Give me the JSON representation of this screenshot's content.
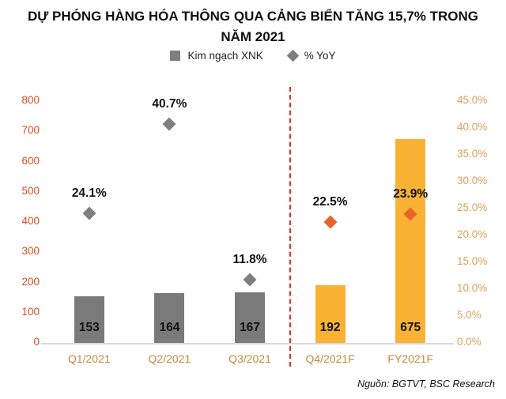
{
  "title_lines": [
    "DỰ PHÓNG HÀNG HÓA THÔNG QUA CẢNG BIỂN TĂNG 15,7% TRONG",
    "NĂM 2021"
  ],
  "legend": {
    "items": [
      {
        "label": "Kim ngạch XNK",
        "marker": "square",
        "color": "#7f7f7f"
      },
      {
        "label": "% YoY",
        "marker": "diamond",
        "color": "#7f7f7f"
      }
    ]
  },
  "source": "Nguồn: BGTVT, BSC Research",
  "colors": {
    "actual_bar": "#7a7a7a",
    "forecast_bar": "#f9b234",
    "actual_marker": "#7f7f7f",
    "forecast_marker": "#e8632c",
    "separator": "#e0301e",
    "left_axis_text": "#d94e1f",
    "right_axis_text": "#d9a15c",
    "category_text": "#c9873c",
    "data_label": "#111111",
    "baseline": "#d9d9d9"
  },
  "chart_data": {
    "type": "bar",
    "title": "DỰ PHÓNG HÀNG HÓA THÔNG QUA CẢNG BIỂN TĂNG 15,7% TRONG NĂM 2021",
    "categories": [
      "Q1/2021",
      "Q2/2021",
      "Q3/2021",
      "Q4/2021F",
      "FY2021F"
    ],
    "series": [
      {
        "name": "Kim ngạch XNK",
        "type": "bar",
        "axis": "left",
        "values": [
          153,
          164,
          167,
          192,
          675
        ],
        "value_labels": [
          "153",
          "164",
          "167",
          "192",
          "675"
        ],
        "forecast_flags": [
          false,
          false,
          false,
          true,
          true
        ]
      },
      {
        "name": "% YoY",
        "type": "scatter",
        "marker": "diamond",
        "axis": "right",
        "values": [
          24.1,
          40.7,
          11.8,
          22.5,
          23.9
        ],
        "value_labels": [
          "24.1%",
          "40.7%",
          "11.8%",
          "22.5%",
          "23.9%"
        ],
        "forecast_flags": [
          false,
          false,
          false,
          true,
          true
        ]
      }
    ],
    "left_axis": {
      "min": 0,
      "max": 800,
      "step": 100,
      "tick_labels": [
        "0",
        "100",
        "200",
        "300",
        "400",
        "500",
        "600",
        "700",
        "800"
      ]
    },
    "right_axis": {
      "min": 0,
      "max": 45,
      "step": 5,
      "tick_labels": [
        "0.0%",
        "5.0%",
        "10.0%",
        "15.0%",
        "20.0%",
        "25.0%",
        "30.0%",
        "35.0%",
        "40.0%",
        "45.0%"
      ]
    },
    "separator": {
      "after_category_index": 2,
      "style": "dashed",
      "color": "#e0301e"
    },
    "grid": false,
    "legend_position": "top"
  }
}
